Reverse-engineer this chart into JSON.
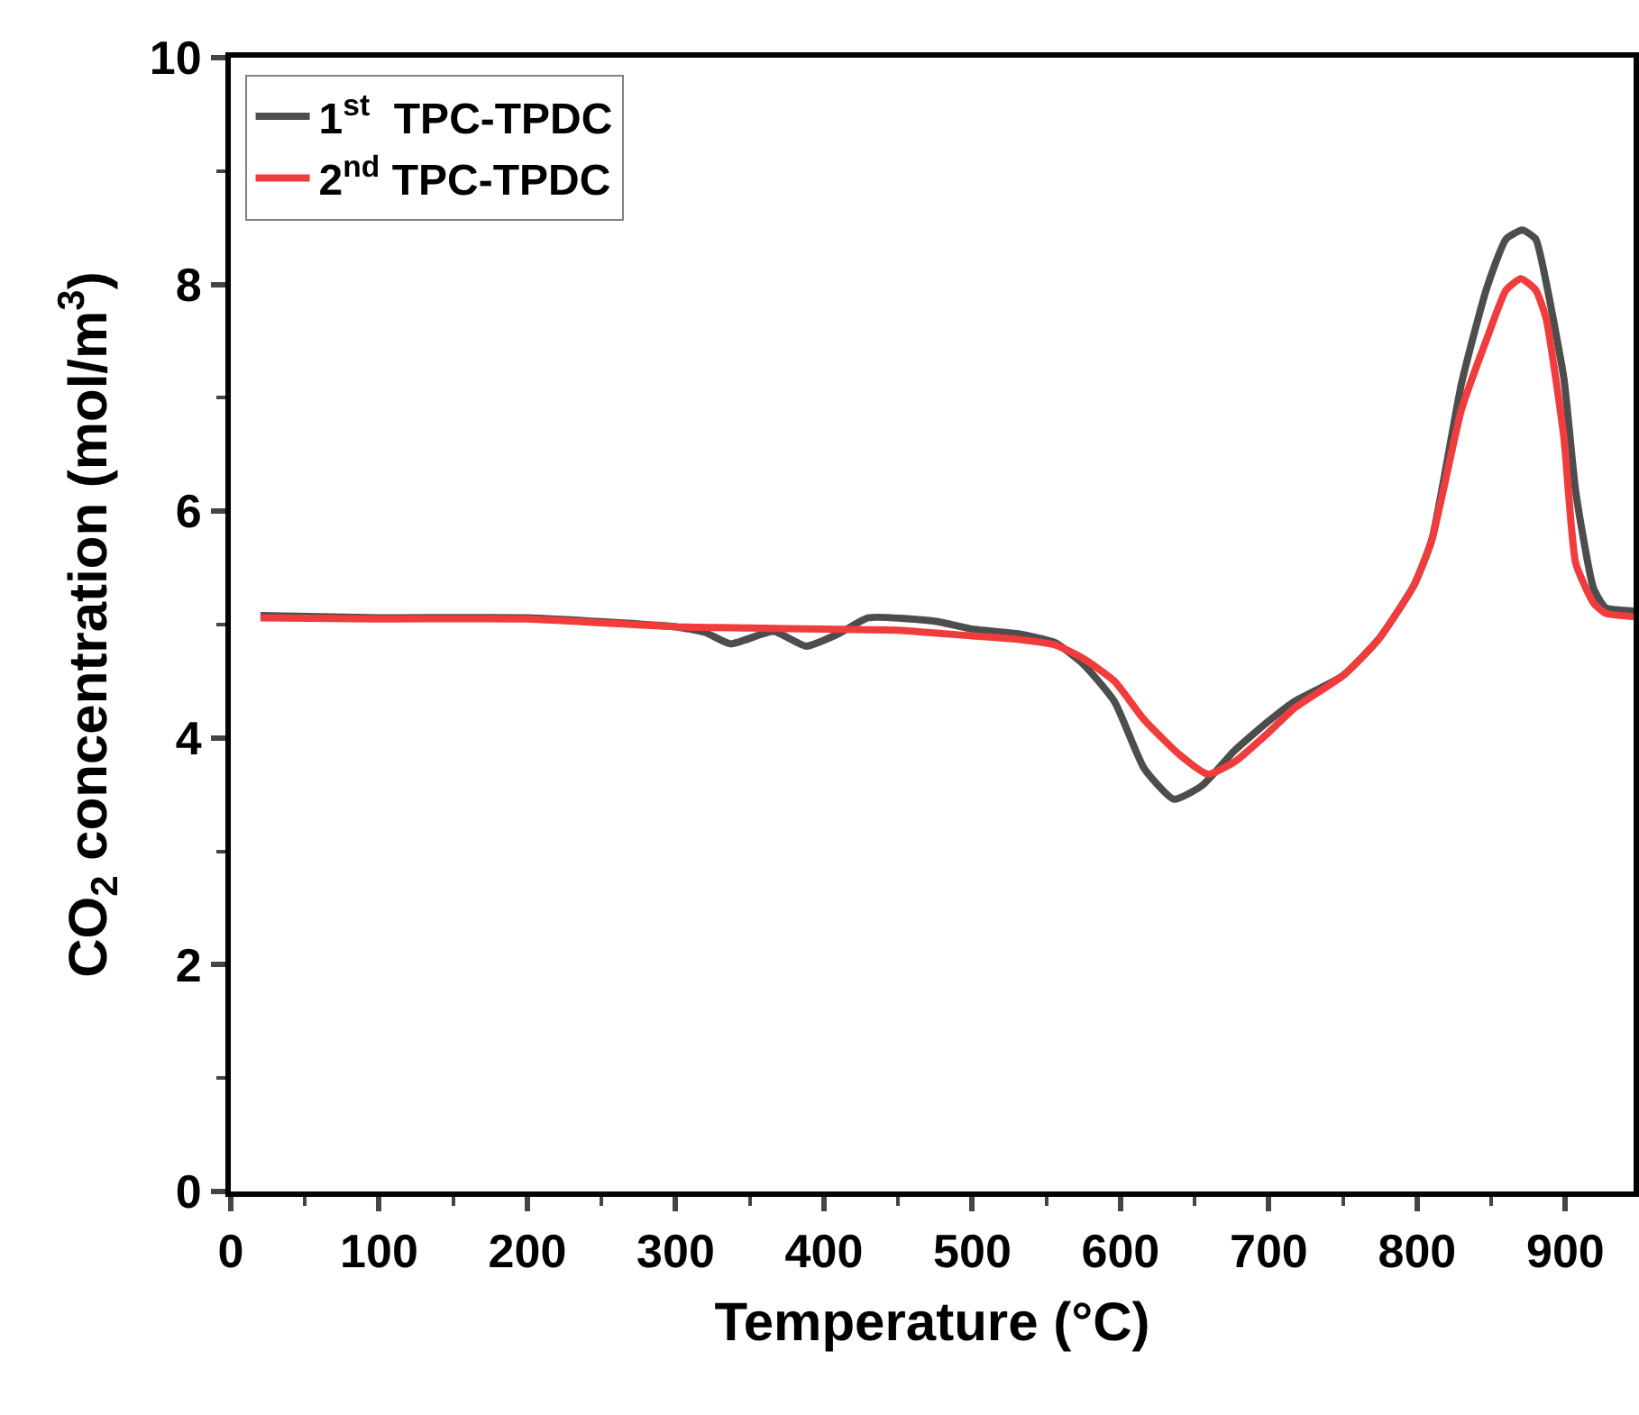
{
  "chart_data": {
    "type": "line",
    "xlabel": "Temperature (°C)",
    "ylabel": "CO$_{2}$ concentration (mol/m$^{3}$)",
    "xlim": [
      0,
      946
    ],
    "xticks": [
      0,
      100,
      200,
      300,
      400,
      500,
      600,
      700,
      800,
      900
    ],
    "ylim": [
      0,
      10
    ],
    "yticks": [
      0,
      2,
      4,
      6,
      8,
      10
    ],
    "legend": "top left",
    "marker": "none",
    "line_style": "solid",
    "series": [
      {
        "name": "1$^{st}$  TPC-TPDC",
        "color": "#4d4d4d",
        "x": [
          20,
          100,
          200,
          300,
          320,
          337,
          366,
          388,
          410,
          430,
          475,
          500,
          530,
          556,
          575,
          596,
          616,
          636,
          655,
          677,
          700,
          717,
          750,
          774,
          798,
          810,
          830,
          847,
          860,
          871,
          880,
          887,
          899,
          907,
          919,
          927,
          946
        ],
        "values": [
          5.08,
          5.06,
          5.06,
          4.98,
          4.93,
          4.83,
          4.94,
          4.81,
          4.92,
          5.06,
          5.03,
          4.96,
          4.92,
          4.84,
          4.65,
          4.32,
          3.73,
          3.46,
          3.58,
          3.89,
          4.15,
          4.32,
          4.55,
          4.87,
          5.35,
          5.75,
          7.13,
          7.97,
          8.4,
          8.48,
          8.4,
          8.02,
          7.17,
          6.17,
          5.32,
          5.15,
          5.12
        ]
      },
      {
        "name": "2$^{nd}$ TPC-TPDC",
        "color": "#f03c3c",
        "x": [
          20,
          100,
          200,
          300,
          350,
          400,
          450,
          500,
          530,
          556,
          575,
          596,
          616,
          640,
          659,
          677,
          700,
          717,
          750,
          774,
          798,
          810,
          830,
          847,
          860,
          870,
          880,
          887,
          899,
          907,
          919,
          927,
          946
        ],
        "values": [
          5.06,
          5.05,
          5.05,
          4.98,
          4.97,
          4.96,
          4.95,
          4.9,
          4.87,
          4.82,
          4.7,
          4.5,
          4.16,
          3.85,
          3.68,
          3.79,
          4.05,
          4.26,
          4.55,
          4.87,
          5.35,
          5.75,
          6.9,
          7.52,
          7.95,
          8.05,
          7.95,
          7.7,
          6.65,
          5.54,
          5.19,
          5.1,
          5.07
        ]
      }
    ]
  }
}
